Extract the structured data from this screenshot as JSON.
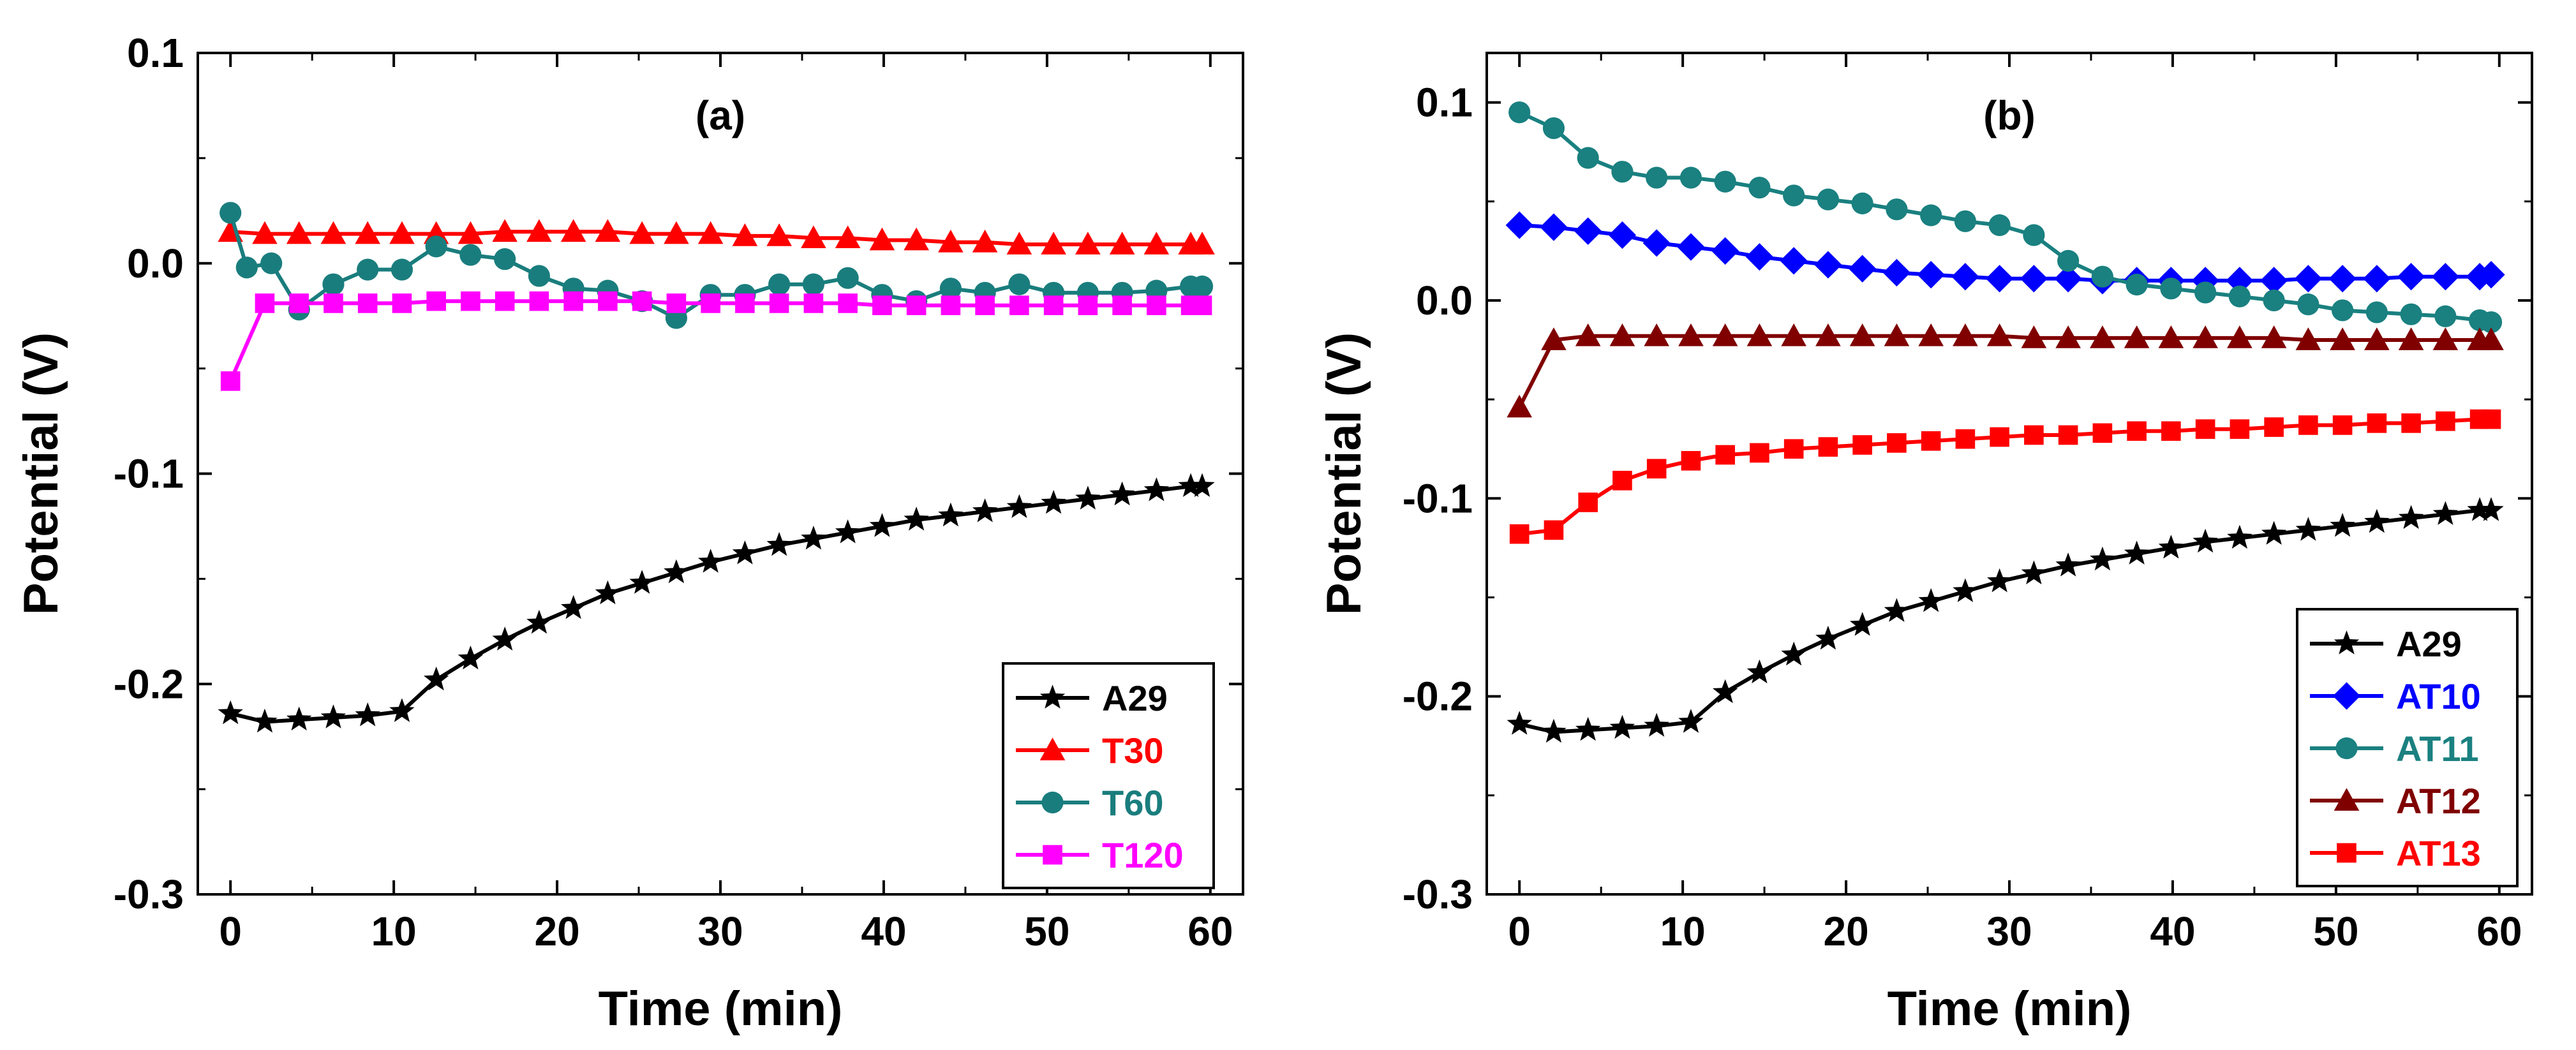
{
  "chart_data": [
    {
      "type": "line",
      "panel_label": "(a)",
      "xlabel": "Time (min)",
      "ylabel": "Potential (V)",
      "xlim": [
        -2,
        62
      ],
      "ylim": [
        -0.3,
        0.1
      ],
      "xticks": [
        0,
        10,
        20,
        30,
        40,
        50,
        60
      ],
      "yticks": [
        -0.3,
        -0.2,
        -0.1,
        0.0,
        0.1
      ],
      "xtick_labels": [
        "0",
        "10",
        "20",
        "30",
        "40",
        "50",
        "60"
      ],
      "ytick_labels": [
        "-0.3",
        "-0.2",
        "-0.1",
        "0.0",
        "0.1"
      ],
      "legend_position": "bottom-right",
      "series": [
        {
          "name": "A29",
          "color": "#000000",
          "marker": "star",
          "x": [
            0,
            2.1,
            4.2,
            6.3,
            8.4,
            10.5,
            12.6,
            14.7,
            16.8,
            18.9,
            21,
            23.1,
            25.2,
            27.3,
            29.4,
            31.5,
            33.6,
            35.7,
            37.8,
            39.9,
            42,
            44.1,
            46.2,
            48.3,
            50.4,
            52.5,
            54.6,
            56.7,
            58.8,
            59.5
          ],
          "values": [
            -0.214,
            -0.218,
            -0.217,
            -0.216,
            -0.215,
            -0.213,
            -0.198,
            -0.188,
            -0.179,
            -0.171,
            -0.164,
            -0.157,
            -0.152,
            -0.147,
            -0.142,
            -0.138,
            -0.134,
            -0.131,
            -0.128,
            -0.125,
            -0.122,
            -0.12,
            -0.118,
            -0.116,
            -0.114,
            -0.112,
            -0.11,
            -0.108,
            -0.106,
            -0.106
          ]
        },
        {
          "name": "T30",
          "color": "#ff0000",
          "marker": "triangle",
          "x": [
            0,
            2.1,
            4.2,
            6.3,
            8.4,
            10.5,
            12.6,
            14.7,
            16.8,
            18.9,
            21,
            23.1,
            25.2,
            27.3,
            29.4,
            31.5,
            33.6,
            35.7,
            37.8,
            39.9,
            42,
            44.1,
            46.2,
            48.3,
            50.4,
            52.5,
            54.6,
            56.7,
            58.8,
            59.5
          ],
          "values": [
            0.015,
            0.014,
            0.014,
            0.014,
            0.014,
            0.014,
            0.014,
            0.014,
            0.015,
            0.015,
            0.015,
            0.015,
            0.014,
            0.014,
            0.014,
            0.013,
            0.013,
            0.012,
            0.012,
            0.011,
            0.011,
            0.01,
            0.01,
            0.009,
            0.009,
            0.009,
            0.009,
            0.009,
            0.009,
            0.009
          ]
        },
        {
          "name": "T60",
          "color": "#1a7d7d",
          "marker": "circle",
          "x": [
            0,
            1,
            2.5,
            4.2,
            6.3,
            8.4,
            10.5,
            12.6,
            14.7,
            16.8,
            18.9,
            21,
            23.1,
            25.2,
            27.3,
            29.4,
            31.5,
            33.6,
            35.7,
            37.8,
            39.9,
            42,
            44.1,
            46.2,
            48.3,
            50.4,
            52.5,
            54.6,
            56.7,
            58.8,
            59.5
          ],
          "values": [
            0.024,
            -0.002,
            0.0,
            -0.022,
            -0.01,
            -0.003,
            -0.003,
            0.008,
            0.004,
            0.002,
            -0.006,
            -0.012,
            -0.013,
            -0.018,
            -0.026,
            -0.015,
            -0.015,
            -0.01,
            -0.01,
            -0.007,
            -0.015,
            -0.018,
            -0.012,
            -0.014,
            -0.01,
            -0.014,
            -0.014,
            -0.014,
            -0.013,
            -0.011,
            -0.011
          ]
        },
        {
          "name": "T120",
          "color": "#ff00ff",
          "marker": "square",
          "x": [
            0,
            2.1,
            4.2,
            6.3,
            8.4,
            10.5,
            12.6,
            14.7,
            16.8,
            18.9,
            21,
            23.1,
            25.2,
            27.3,
            29.4,
            31.5,
            33.6,
            35.7,
            37.8,
            39.9,
            42,
            44.1,
            46.2,
            48.3,
            50.4,
            52.5,
            54.6,
            56.7,
            58.8,
            59.5
          ],
          "values": [
            -0.056,
            -0.019,
            -0.019,
            -0.019,
            -0.019,
            -0.019,
            -0.018,
            -0.018,
            -0.018,
            -0.018,
            -0.018,
            -0.018,
            -0.018,
            -0.019,
            -0.019,
            -0.019,
            -0.019,
            -0.019,
            -0.019,
            -0.02,
            -0.02,
            -0.02,
            -0.02,
            -0.02,
            -0.02,
            -0.02,
            -0.02,
            -0.02,
            -0.02,
            -0.02
          ]
        }
      ]
    },
    {
      "type": "line",
      "panel_label": "(b)",
      "xlabel": "Time (min)",
      "ylabel": "Potential (V)",
      "xlim": [
        -2,
        62
      ],
      "ylim": [
        -0.3,
        0.125
      ],
      "xticks": [
        0,
        10,
        20,
        30,
        40,
        50,
        60
      ],
      "yticks": [
        -0.3,
        -0.2,
        -0.1,
        0.0,
        0.1
      ],
      "xtick_labels": [
        "0",
        "10",
        "20",
        "30",
        "40",
        "50",
        "60"
      ],
      "ytick_labels": [
        "-0.3",
        "-0.2",
        "-0.1",
        "0.0",
        "0.1"
      ],
      "legend_position": "bottom-right",
      "series": [
        {
          "name": "A29",
          "color": "#000000",
          "marker": "star",
          "x": [
            0,
            2.1,
            4.2,
            6.3,
            8.4,
            10.5,
            12.6,
            14.7,
            16.8,
            18.9,
            21,
            23.1,
            25.2,
            27.3,
            29.4,
            31.5,
            33.6,
            35.7,
            37.8,
            39.9,
            42,
            44.1,
            46.2,
            48.3,
            50.4,
            52.5,
            54.6,
            56.7,
            58.8,
            59.5
          ],
          "values": [
            -0.214,
            -0.218,
            -0.217,
            -0.216,
            -0.215,
            -0.213,
            -0.198,
            -0.188,
            -0.179,
            -0.171,
            -0.164,
            -0.157,
            -0.152,
            -0.147,
            -0.142,
            -0.138,
            -0.134,
            -0.131,
            -0.128,
            -0.125,
            -0.122,
            -0.12,
            -0.118,
            -0.116,
            -0.114,
            -0.112,
            -0.11,
            -0.108,
            -0.106,
            -0.106
          ]
        },
        {
          "name": "AT10",
          "color": "#0000ff",
          "marker": "diamond",
          "x": [
            0,
            2.1,
            4.2,
            6.3,
            8.4,
            10.5,
            12.6,
            14.7,
            16.8,
            18.9,
            21,
            23.1,
            25.2,
            27.3,
            29.4,
            31.5,
            33.6,
            35.7,
            37.8,
            39.9,
            42,
            44.1,
            46.2,
            48.3,
            50.4,
            52.5,
            54.6,
            56.7,
            58.8,
            59.5
          ],
          "values": [
            0.038,
            0.037,
            0.035,
            0.033,
            0.029,
            0.027,
            0.025,
            0.022,
            0.02,
            0.018,
            0.016,
            0.014,
            0.013,
            0.012,
            0.011,
            0.011,
            0.011,
            0.01,
            0.01,
            0.01,
            0.01,
            0.01,
            0.01,
            0.011,
            0.011,
            0.011,
            0.012,
            0.012,
            0.012,
            0.013
          ]
        },
        {
          "name": "AT11",
          "color": "#1a8080",
          "marker": "circle",
          "x": [
            0,
            2.1,
            4.2,
            6.3,
            8.4,
            10.5,
            12.6,
            14.7,
            16.8,
            18.9,
            21,
            23.1,
            25.2,
            27.3,
            29.4,
            31.5,
            33.6,
            35.7,
            37.8,
            39.9,
            42,
            44.1,
            46.2,
            48.3,
            50.4,
            52.5,
            54.6,
            56.7,
            58.8,
            59.5
          ],
          "values": [
            0.095,
            0.087,
            0.072,
            0.065,
            0.062,
            0.062,
            0.06,
            0.057,
            0.053,
            0.051,
            0.049,
            0.046,
            0.043,
            0.04,
            0.038,
            0.033,
            0.02,
            0.012,
            0.008,
            0.006,
            0.004,
            0.002,
            0.0,
            -0.002,
            -0.005,
            -0.006,
            -0.007,
            -0.008,
            -0.01,
            -0.011
          ]
        },
        {
          "name": "AT12",
          "color": "#800000",
          "marker": "triangle",
          "x": [
            0,
            2.1,
            4.2,
            6.3,
            8.4,
            10.5,
            12.6,
            14.7,
            16.8,
            18.9,
            21,
            23.1,
            25.2,
            27.3,
            29.4,
            31.5,
            33.6,
            35.7,
            37.8,
            39.9,
            42,
            44.1,
            46.2,
            48.3,
            50.4,
            52.5,
            54.6,
            56.7,
            58.8,
            59.5
          ],
          "values": [
            -0.054,
            -0.02,
            -0.018,
            -0.018,
            -0.018,
            -0.018,
            -0.018,
            -0.018,
            -0.018,
            -0.018,
            -0.018,
            -0.018,
            -0.018,
            -0.018,
            -0.018,
            -0.019,
            -0.019,
            -0.019,
            -0.019,
            -0.019,
            -0.019,
            -0.019,
            -0.019,
            -0.02,
            -0.02,
            -0.02,
            -0.02,
            -0.02,
            -0.02,
            -0.02
          ]
        },
        {
          "name": "AT13",
          "color": "#ff0000",
          "marker": "square",
          "x": [
            0,
            2.1,
            4.2,
            6.3,
            8.4,
            10.5,
            12.6,
            14.7,
            16.8,
            18.9,
            21,
            23.1,
            25.2,
            27.3,
            29.4,
            31.5,
            33.6,
            35.7,
            37.8,
            39.9,
            42,
            44.1,
            46.2,
            48.3,
            50.4,
            52.5,
            54.6,
            56.7,
            58.8,
            59.5
          ],
          "values": [
            -0.118,
            -0.116,
            -0.102,
            -0.091,
            -0.085,
            -0.081,
            -0.078,
            -0.077,
            -0.075,
            -0.074,
            -0.073,
            -0.072,
            -0.071,
            -0.07,
            -0.069,
            -0.068,
            -0.068,
            -0.067,
            -0.066,
            -0.066,
            -0.065,
            -0.065,
            -0.064,
            -0.063,
            -0.063,
            -0.062,
            -0.062,
            -0.061,
            -0.06,
            -0.06
          ]
        }
      ]
    }
  ]
}
